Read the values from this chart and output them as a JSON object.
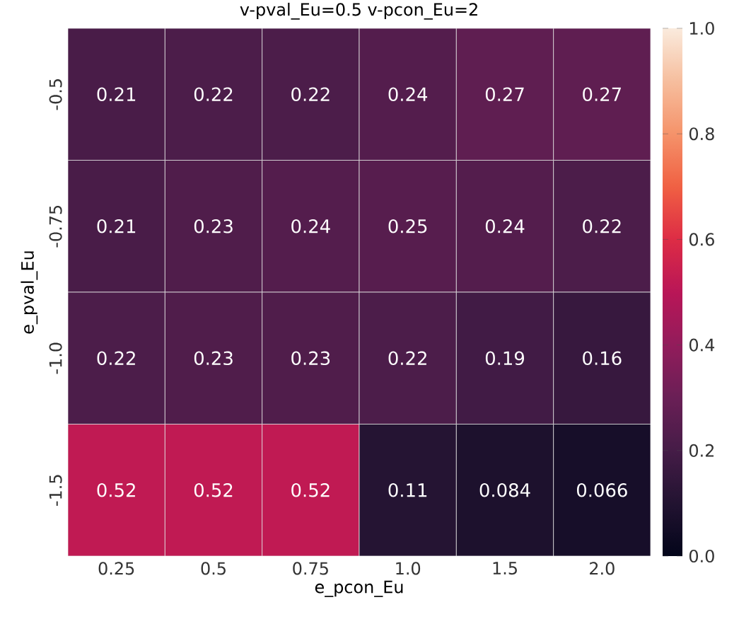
{
  "chart_data": {
    "type": "heatmap",
    "title": "v-pval_Eu=0.5 v-pcon_Eu=2",
    "xlabel": "e_pcon_Eu",
    "ylabel": "e_pval_Eu",
    "categories": [
      "0.25",
      "0.5",
      "0.75",
      "1.0",
      "1.5",
      "2.0"
    ],
    "y_categories": [
      "-0.5",
      "-0.75",
      "-1.0",
      "-1.5"
    ],
    "cells": [
      [
        0.21,
        0.22,
        0.22,
        0.24,
        0.27,
        0.27
      ],
      [
        0.21,
        0.23,
        0.24,
        0.25,
        0.24,
        0.22
      ],
      [
        0.22,
        0.23,
        0.23,
        0.22,
        0.19,
        0.16
      ],
      [
        0.52,
        0.52,
        0.52,
        0.11,
        0.084,
        0.066
      ]
    ],
    "clim": [
      0,
      1
    ],
    "cticks": [
      {
        "value": 0,
        "label": "0.0"
      },
      {
        "value": 0.2,
        "label": "0.2"
      },
      {
        "value": 0.4,
        "label": "0.4"
      },
      {
        "value": 0.6,
        "label": "0.6"
      },
      {
        "value": 0.8,
        "label": "0.8"
      },
      {
        "value": 1,
        "label": "1.0"
      }
    ],
    "data_labels": true
  }
}
